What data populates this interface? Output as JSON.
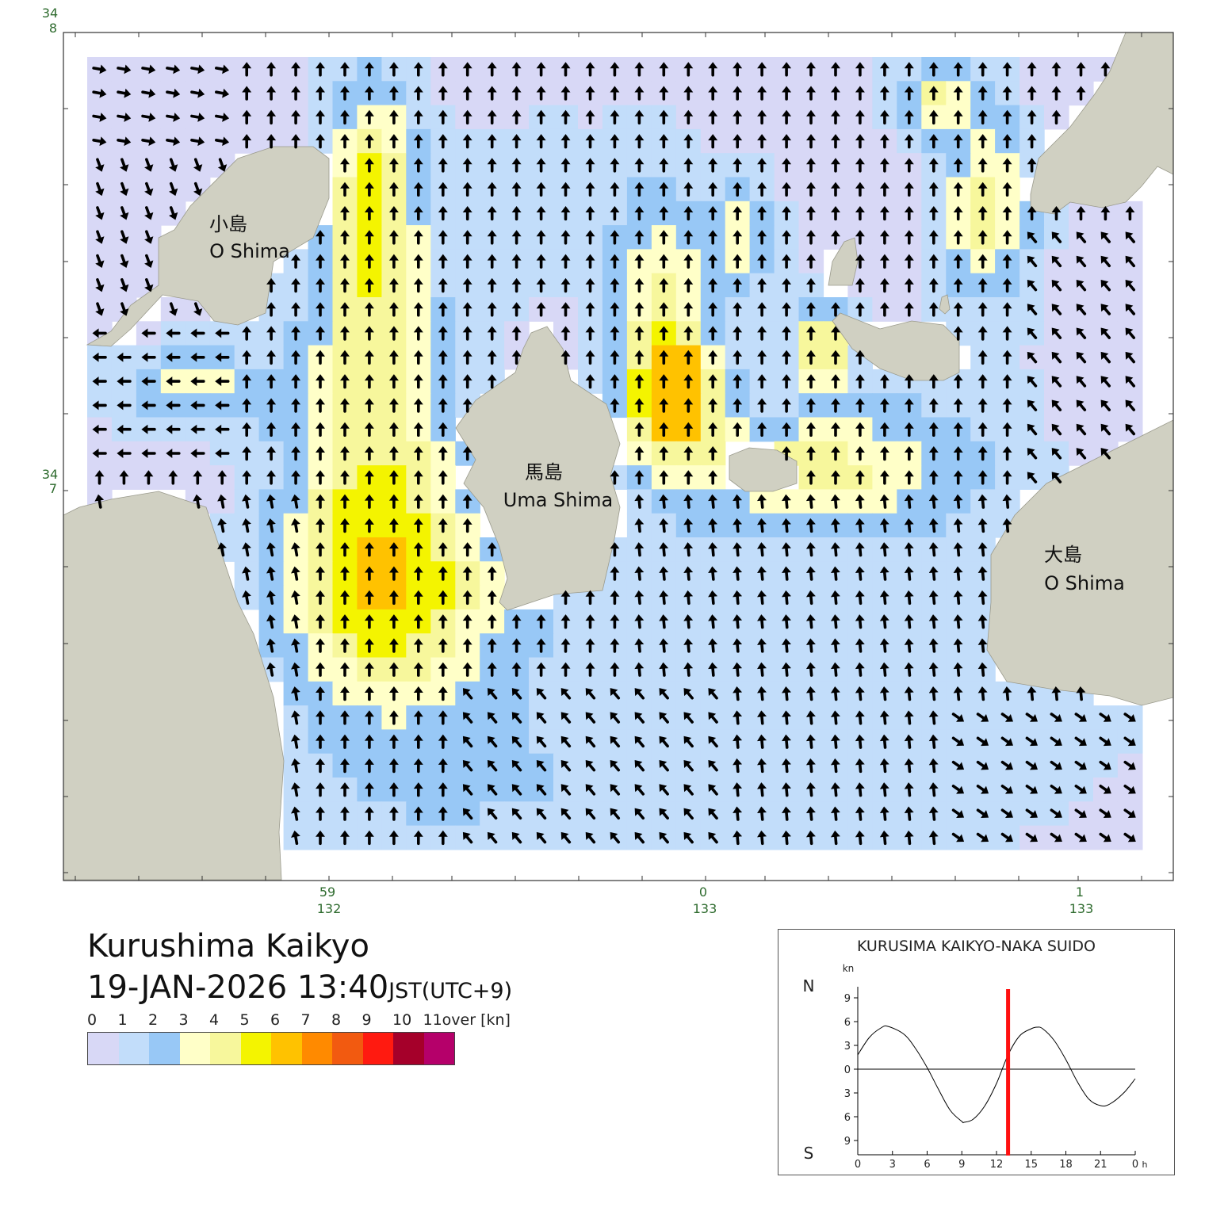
{
  "map": {
    "lat_labels": [
      {
        "deg": "34",
        "min": "8"
      },
      {
        "deg": "34",
        "min": "7"
      }
    ],
    "lon_labels": [
      {
        "deg": "132",
        "min": "59"
      },
      {
        "deg": "133",
        "min": "0"
      },
      {
        "deg": "133",
        "min": "1"
      }
    ],
    "islands": [
      {
        "name_ja": "小島",
        "name_en": "O Shima"
      },
      {
        "name_ja": "馬島",
        "name_en": "Uma Shima"
      },
      {
        "name_ja": "大島",
        "name_en": "O Shima"
      }
    ],
    "colors": {
      "land": "#d0d0c2",
      "land_edge": "#9a9a8c",
      "frame": "#333333",
      "tick_label": "#2e6b2e"
    },
    "arrow_icon": "current-direction-arrow",
    "calm_icon": "calm-dot"
  },
  "title": {
    "name": "Kurushima Kaikyo",
    "datetime": "19-JAN-2026 13:40",
    "timezone": "JST(UTC+9)"
  },
  "legend": {
    "labels": [
      "0",
      "1",
      "2",
      "3",
      "4",
      "5",
      "6",
      "7",
      "8",
      "9",
      "10",
      "11over [kn]"
    ],
    "colors": [
      "#d8d8f6",
      "#c2ddfa",
      "#98c8f6",
      "#ffffc8",
      "#f7f79c",
      "#f4f400",
      "#ffc200",
      "#ff8a00",
      "#f25a10",
      "#ff1a10",
      "#a5002a",
      "#b5006a"
    ]
  },
  "tide_chart": {
    "title": "KURUSIMA KAIKYO-NAKA SUIDO",
    "unit": "kn",
    "north_label": "N",
    "south_label": "S",
    "y_tick_labels": [
      "9",
      "6",
      "3",
      "0",
      "3",
      "6",
      "9"
    ],
    "x_tick_labels": [
      "0",
      "3",
      "6",
      "9",
      "12",
      "15",
      "18",
      "21",
      "0"
    ],
    "x_unit": "h",
    "current_hour": 13.0,
    "line_color": "#ff1010"
  },
  "chart_data": {
    "type": "line",
    "title": "KURUSIMA KAIKYO-NAKA SUIDO",
    "ylabel": "kn",
    "xlim": [
      0,
      24
    ],
    "ylim": [
      -10,
      10
    ],
    "series": [
      {
        "x": [
          0,
          1,
          2,
          2.6,
          4,
          5,
          6,
          7,
          8,
          9,
          9.2,
          10,
          11,
          12,
          13,
          14,
          15,
          15.5,
          16,
          17,
          18,
          19,
          20,
          21,
          21.8,
          23,
          24
        ],
        "values": [
          1.8,
          4.0,
          5.2,
          5.4,
          4.4,
          2.6,
          0.2,
          -2.6,
          -5.2,
          -6.6,
          -6.7,
          -6.3,
          -4.6,
          -1.8,
          1.8,
          4.2,
          5.1,
          5.3,
          5.1,
          3.6,
          1.2,
          -1.6,
          -3.8,
          -4.6,
          -4.4,
          -3.0,
          -1.2
        ]
      }
    ],
    "marker_hour": 13.0
  }
}
